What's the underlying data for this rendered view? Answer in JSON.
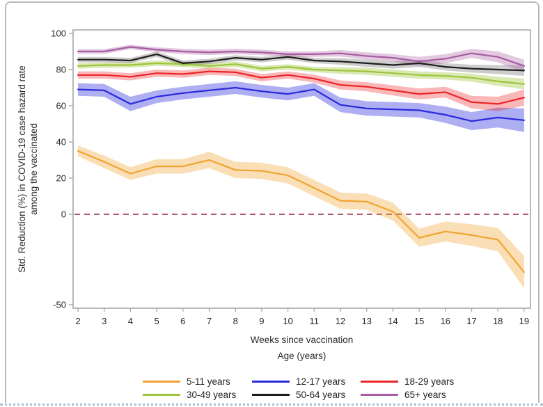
{
  "frame": {
    "background": "#ffffff",
    "border_color": "#b6babb",
    "bottom_edge_color": "#a9bccf"
  },
  "chart_data": {
    "type": "line",
    "title": "",
    "xlabel": "Weeks since vaccination",
    "ylabel": "Std. Reduction (%) in COVID-19 case hazard rate among the vaccinated",
    "ylabel_lines": [
      "Std. Reduction (%) in COVID-19 case hazard rate",
      "among the vaccinated"
    ],
    "legend_title": "Age (years)",
    "legend_position": "bottom",
    "grid": false,
    "x": [
      2,
      3,
      4,
      5,
      6,
      7,
      8,
      9,
      10,
      11,
      12,
      13,
      14,
      15,
      16,
      17,
      18,
      19
    ],
    "y_ticks": [
      100,
      80,
      60,
      40,
      20,
      0,
      -50
    ],
    "xlim": [
      2,
      19
    ],
    "ylim": [
      -52,
      102
    ],
    "axis_color": "#a6a6a6",
    "tick_label_color": "#262626",
    "reference_line": {
      "y": 0,
      "style": "dashed",
      "color": "#b2596b"
    },
    "series": [
      {
        "name": "5-11 years",
        "color": "#f0a32f",
        "band_opacity": 0.35,
        "values": [
          35,
          29,
          22.5,
          26.5,
          26.5,
          30,
          24.5,
          24,
          21.5,
          14.5,
          7.5,
          7,
          1.5,
          -13,
          -9.5,
          -11.5,
          -14,
          -32
        ],
        "ci_halfwidth": [
          3,
          3.5,
          3.5,
          4,
          4,
          4.5,
          4.5,
          4.5,
          4.5,
          4.5,
          4.5,
          4.5,
          5,
          5,
          5.5,
          6,
          6.5,
          9
        ]
      },
      {
        "name": "12-17 years",
        "color": "#2929dd",
        "band_opacity": 0.38,
        "values": [
          69,
          68.5,
          61,
          65,
          67,
          68.5,
          70,
          68,
          66.5,
          69,
          60.5,
          58.5,
          58,
          57.5,
          55,
          51.5,
          53.5,
          52
        ],
        "ci_halfwidth": [
          3.5,
          3.5,
          4,
          3.5,
          3.5,
          3.5,
          3.5,
          3.5,
          3.5,
          3.5,
          4,
          4,
          4,
          4,
          4.5,
          5,
          5.5,
          6.5
        ]
      },
      {
        "name": "18-29 years",
        "color": "#ec2427",
        "band_opacity": 0.33,
        "values": [
          77,
          77,
          76,
          78,
          77.5,
          79,
          78.5,
          75.5,
          77,
          75,
          71.5,
          70.5,
          68.5,
          66.5,
          67.5,
          62,
          61,
          64.5
        ],
        "ci_halfwidth": [
          2,
          2,
          2,
          2,
          2,
          2,
          2,
          2,
          2,
          2.2,
          2.5,
          2.5,
          2.8,
          3,
          3,
          3.5,
          4,
          4.5
        ]
      },
      {
        "name": "30-49 years",
        "color": "#9dc43b",
        "band_opacity": 0.38,
        "values": [
          82,
          82.5,
          82.5,
          83.5,
          83,
          82,
          83,
          80.5,
          81.5,
          80,
          79.5,
          79,
          78,
          77,
          76.5,
          75.5,
          73.5,
          72
        ],
        "ci_halfwidth": [
          1.5,
          1.5,
          1.5,
          1.5,
          1.5,
          1.5,
          1.5,
          1.5,
          1.5,
          1.5,
          1.8,
          2,
          2,
          2,
          2,
          2.2,
          2.5,
          3
        ]
      },
      {
        "name": "50-64 years",
        "color": "#1c1c1c",
        "band_opacity": 0.22,
        "values": [
          85.5,
          85.5,
          85,
          88.5,
          83.5,
          84.5,
          86.5,
          85.5,
          87,
          85,
          84.5,
          83.5,
          82.5,
          83.5,
          81.5,
          80.5,
          80,
          79.5
        ],
        "ci_halfwidth": [
          1.5,
          1.5,
          1.5,
          1.5,
          1.5,
          1.5,
          1.5,
          1.5,
          1.5,
          1.5,
          1.8,
          2,
          2,
          2,
          2,
          2.2,
          2.5,
          3
        ]
      },
      {
        "name": "65+ years",
        "color": "#a75ba2",
        "band_opacity": 0.33,
        "values": [
          90,
          90,
          92.5,
          91,
          90,
          89.5,
          90,
          89.5,
          88.5,
          88.5,
          89,
          87.5,
          86.5,
          84.5,
          86,
          89,
          87,
          82
        ],
        "ci_halfwidth": [
          1.3,
          1.3,
          1.2,
          1.3,
          1.5,
          1.5,
          1.5,
          1.5,
          1.5,
          1.5,
          1.8,
          2,
          2,
          2.5,
          2.5,
          2.5,
          3,
          3.5
        ]
      }
    ]
  }
}
